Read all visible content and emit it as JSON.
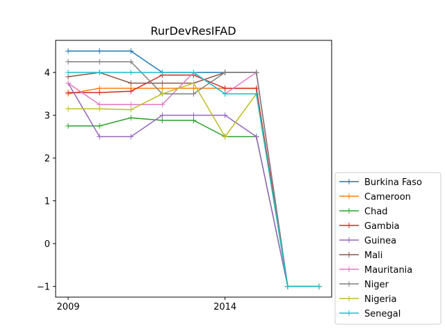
{
  "chart_data": {
    "type": "line",
    "title": "RurDevResIFAD",
    "xlabel": "",
    "ylabel": "",
    "xlim": [
      2008.6,
      2017.4
    ],
    "ylim": [
      -1.25,
      4.75
    ],
    "x": [
      2009,
      2010,
      2011,
      2012,
      2013,
      2014,
      2015,
      2016,
      2017
    ],
    "xticks": [
      2009,
      2014
    ],
    "yticks": [
      -1,
      0,
      1,
      2,
      3,
      4
    ],
    "grid": false,
    "legend_position": "right-outside",
    "series": [
      {
        "name": "Burkina Faso",
        "color": "#1f77b4",
        "values": [
          4.5,
          4.5,
          4.5,
          4.0,
          4.0,
          4.0,
          4.0,
          -1,
          -1
        ]
      },
      {
        "name": "Cameroon",
        "color": "#ff7f0e",
        "values": [
          3.5,
          3.63,
          3.63,
          3.63,
          3.63,
          3.63,
          3.63,
          -1,
          -1
        ]
      },
      {
        "name": "Chad",
        "color": "#2ca02c",
        "values": [
          2.75,
          2.75,
          2.94,
          2.88,
          2.88,
          2.5,
          2.5,
          -1,
          -1
        ]
      },
      {
        "name": "Gambia",
        "color": "#d62728",
        "values": [
          3.53,
          3.53,
          3.56,
          3.94,
          3.94,
          3.63,
          3.63,
          -1,
          -1
        ]
      },
      {
        "name": "Guinea",
        "color": "#9467bd",
        "values": [
          3.75,
          2.5,
          2.5,
          3.0,
          3.0,
          3.0,
          2.5,
          -1,
          -1
        ]
      },
      {
        "name": "Mali",
        "color": "#8c564b",
        "values": [
          3.9,
          4.0,
          3.75,
          3.75,
          3.75,
          4.0,
          4.0,
          -1,
          -1
        ]
      },
      {
        "name": "Mauritania",
        "color": "#e377c2",
        "values": [
          3.75,
          3.25,
          3.25,
          3.25,
          4.0,
          3.5,
          4.0,
          -1,
          -1
        ]
      },
      {
        "name": "Niger",
        "color": "#7f7f7f",
        "values": [
          4.25,
          4.25,
          4.25,
          3.5,
          3.5,
          4.0,
          4.0,
          -1,
          -1
        ]
      },
      {
        "name": "Nigeria",
        "color": "#bcbd22",
        "values": [
          3.15,
          3.15,
          3.13,
          3.5,
          3.75,
          2.5,
          3.5,
          -1,
          -1
        ]
      },
      {
        "name": "Senegal",
        "color": "#17becf",
        "values": [
          4.0,
          4.0,
          4.0,
          4.0,
          4.0,
          3.5,
          3.5,
          -1,
          -1
        ]
      }
    ]
  }
}
